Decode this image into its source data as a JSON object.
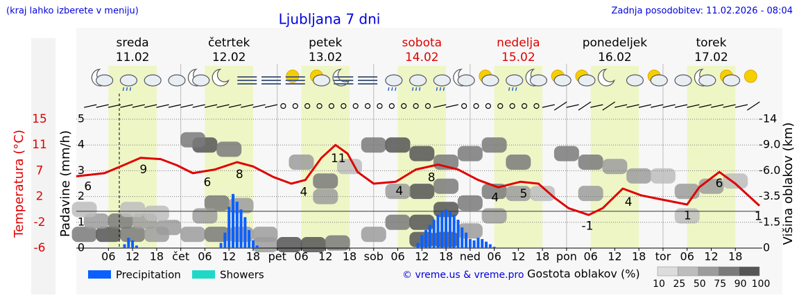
{
  "chart_data": {
    "type": "meteogram",
    "title": "Ljubljana 7 dni",
    "subtitle_left": "(kraj lahko izberete v meniju)",
    "subtitle_right": "Zadnja posodobitev: 11.02.2026 - 08:04",
    "credit": "© vreme.us & vreme.pro",
    "days": [
      {
        "name": "sreda",
        "date": "11.02",
        "color": "#000000"
      },
      {
        "name": "četrtek",
        "date": "12.02",
        "color": "#000000"
      },
      {
        "name": "petek",
        "date": "13.02",
        "color": "#000000"
      },
      {
        "name": "sobota",
        "date": "14.02",
        "color": "#e00000"
      },
      {
        "name": "nedelja",
        "date": "15.02",
        "color": "#e00000"
      },
      {
        "name": "ponedeljek",
        "date": "16.02",
        "color": "#000000"
      },
      {
        "name": "torek",
        "date": "17.02",
        "color": "#000000"
      }
    ],
    "xlim": [
      -2,
      168
    ],
    "xticks": [
      {
        "value": 6,
        "label": "06"
      },
      {
        "value": 12,
        "label": "12"
      },
      {
        "value": 18,
        "label": "18"
      },
      {
        "value": 24,
        "label": "čet"
      },
      {
        "value": 30,
        "label": "06"
      },
      {
        "value": 36,
        "label": "12"
      },
      {
        "value": 42,
        "label": "18"
      },
      {
        "value": 48,
        "label": "pet"
      },
      {
        "value": 54,
        "label": "06"
      },
      {
        "value": 60,
        "label": "12"
      },
      {
        "value": 66,
        "label": "18"
      },
      {
        "value": 72,
        "label": "sob"
      },
      {
        "value": 78,
        "label": "06"
      },
      {
        "value": 84,
        "label": "12"
      },
      {
        "value": 90,
        "label": "18"
      },
      {
        "value": 96,
        "label": "ned"
      },
      {
        "value": 102,
        "label": "06"
      },
      {
        "value": 108,
        "label": "12"
      },
      {
        "value": 114,
        "label": "18"
      },
      {
        "value": 120,
        "label": "pon"
      },
      {
        "value": 126,
        "label": "06"
      },
      {
        "value": 132,
        "label": "12"
      },
      {
        "value": 138,
        "label": "18"
      },
      {
        "value": 144,
        "label": "tor"
      },
      {
        "value": 150,
        "label": "06"
      },
      {
        "value": 156,
        "label": "12"
      },
      {
        "value": 162,
        "label": "18"
      }
    ],
    "now": 8.7,
    "ylabel": "Padavine (mm/h)",
    "ylim": [
      0,
      5
    ],
    "yticks": [
      0,
      1,
      2,
      3,
      4,
      5
    ],
    "grid": true,
    "y2label": "Višina oblakov (km)",
    "y2lim": [
      0,
      14
    ],
    "y2ticks": [
      0,
      1.5,
      3.5,
      {
        "value": 6,
        "label": "6.0"
      },
      {
        "value": 9,
        "label": "9.0"
      },
      14
    ],
    "temperature": {
      "axis_label": "Temperatura (°C)",
      "color": "#e00000",
      "lim": [
        -6,
        15
      ],
      "ticks": [
        {
          "value": 15,
          "label": "15"
        },
        {
          "value": 10.8,
          "label": "11"
        },
        {
          "value": 6.6,
          "label": "7"
        },
        {
          "value": 2.4,
          "label": "2"
        },
        {
          "value": -1.8,
          "label": "-2"
        },
        {
          "value": -6,
          "label": "-6"
        }
      ],
      "zero_line": 0,
      "x": [
        -2,
        5,
        9,
        14,
        19,
        23,
        27,
        32.5,
        38,
        42,
        47,
        51.5,
        55,
        59,
        62.5,
        65.5,
        68,
        72,
        77.5,
        82.5,
        88,
        93,
        98,
        103,
        108.5,
        113,
        117,
        120.5,
        125.5,
        129,
        134,
        138.5,
        143,
        150,
        153,
        158,
        162,
        168
      ],
      "values": [
        5.7,
        6.2,
        7.3,
        8.7,
        8.5,
        7.5,
        6.2,
        6.8,
        8.0,
        7.3,
        5.6,
        4.5,
        5.1,
        8.7,
        10.8,
        9.4,
        6.4,
        4.5,
        4.8,
        6.8,
        7.6,
        6.8,
        5.1,
        3.9,
        4.8,
        4.5,
        2.2,
        0.5,
        -0.6,
        0.5,
        3.7,
        2.6,
        2.0,
        1.1,
        3.9,
        6.4,
        4.5,
        0.9
      ],
      "annotations": [
        {
          "text": "6",
          "x": 0.9
        },
        {
          "text": "9",
          "x": 14.7
        },
        {
          "text": "6",
          "x": 30.6
        },
        {
          "text": "8",
          "x": 38.6
        },
        {
          "text": "4",
          "x": 54.6
        },
        {
          "text": "11",
          "x": 63.2
        },
        {
          "text": "4",
          "x": 78.4
        },
        {
          "text": "8",
          "x": 86.4
        },
        {
          "text": "4",
          "x": 102.2
        },
        {
          "text": "5",
          "x": 109.3
        },
        {
          "text": "-1",
          "x": 125.2
        },
        {
          "text": "4",
          "x": 135.4
        },
        {
          "text": "1",
          "x": 150.1
        },
        {
          "text": "6",
          "x": 158
        },
        {
          "text": "1",
          "x": 167.7
        }
      ]
    },
    "series": [
      {
        "name": "Precipitation",
        "color": "#0b5fff",
        "x": [
          10,
          11,
          12,
          13,
          34,
          35,
          36,
          37,
          38,
          39,
          40,
          41,
          42,
          43,
          83,
          84,
          85,
          86,
          87,
          88,
          89,
          90,
          91,
          92,
          93,
          94,
          95,
          96,
          97,
          98,
          99,
          100,
          101,
          102
        ],
        "values": [
          0.15,
          0.4,
          0.3,
          0.1,
          0.2,
          0.6,
          1.6,
          2.1,
          1.8,
          1.5,
          1.2,
          0.7,
          0.3,
          0.1,
          0.2,
          0.5,
          0.7,
          0.9,
          1.1,
          1.3,
          1.4,
          1.5,
          1.4,
          1.3,
          1.1,
          0.8,
          0.6,
          0.35,
          0.3,
          0.4,
          0.35,
          0.25,
          0.15,
          0.05
        ]
      },
      {
        "name": "Showers",
        "color": "#1fd8c8",
        "x": [],
        "values": []
      }
    ],
    "cloud_density": {
      "label": "Gostota oblakov (%)",
      "levels": [
        10,
        25,
        50,
        75,
        90,
        100
      ],
      "colors": [
        "#dcdcdc",
        "#bdbdbd",
        "#9c9c9c",
        "#7a7a7a",
        "#555555"
      ],
      "cells": [
        [
          0,
          0.8,
          75
        ],
        [
          6,
          0.8,
          90
        ],
        [
          12,
          0.8,
          75
        ],
        [
          18,
          0.8,
          50
        ],
        [
          3,
          1.6,
          50
        ],
        [
          9,
          1.6,
          75
        ],
        [
          15,
          1.6,
          50
        ],
        [
          21,
          1.2,
          50
        ],
        [
          0,
          2.5,
          25
        ],
        [
          12,
          2.5,
          25
        ],
        [
          18,
          2.2,
          25
        ],
        [
          27,
          0.8,
          50
        ],
        [
          33,
          0.8,
          75
        ],
        [
          39,
          0.8,
          50
        ],
        [
          45,
          0.8,
          50
        ],
        [
          30,
          9,
          90
        ],
        [
          36,
          8.5,
          75
        ],
        [
          27,
          10,
          75
        ],
        [
          33,
          3,
          75
        ],
        [
          39,
          2.8,
          50
        ],
        [
          30,
          2,
          50
        ],
        [
          45,
          0.2,
          50
        ],
        [
          51,
          0.2,
          90
        ],
        [
          57,
          0.2,
          90
        ],
        [
          63,
          0.3,
          75
        ],
        [
          54,
          7,
          50
        ],
        [
          60,
          5,
          75
        ],
        [
          60,
          3.5,
          50
        ],
        [
          66,
          6.5,
          25
        ],
        [
          72,
          9,
          75
        ],
        [
          78,
          9,
          90
        ],
        [
          84,
          8,
          90
        ],
        [
          90,
          7,
          75
        ],
        [
          96,
          8,
          75
        ],
        [
          72,
          0.8,
          50
        ],
        [
          78,
          1.5,
          75
        ],
        [
          84,
          1.5,
          90
        ],
        [
          90,
          2.5,
          90
        ],
        [
          84,
          0.5,
          90
        ],
        [
          90,
          0.5,
          90
        ],
        [
          84,
          4,
          90
        ],
        [
          90,
          4.5,
          75
        ],
        [
          96,
          3,
          75
        ],
        [
          96,
          1,
          50
        ],
        [
          78,
          4,
          50
        ],
        [
          102,
          9,
          75
        ],
        [
          108,
          7,
          75
        ],
        [
          102,
          4,
          75
        ],
        [
          108,
          3.8,
          50
        ],
        [
          114,
          3.8,
          25
        ],
        [
          102,
          2,
          50
        ],
        [
          120,
          8,
          75
        ],
        [
          126,
          7,
          75
        ],
        [
          126,
          3.8,
          50
        ],
        [
          132,
          6.5,
          50
        ],
        [
          138,
          5.5,
          50
        ],
        [
          144,
          5.5,
          25
        ],
        [
          150,
          4,
          50
        ],
        [
          156,
          4.5,
          50
        ],
        [
          150,
          2,
          25
        ],
        [
          162,
          5,
          25
        ]
      ]
    }
  }
}
